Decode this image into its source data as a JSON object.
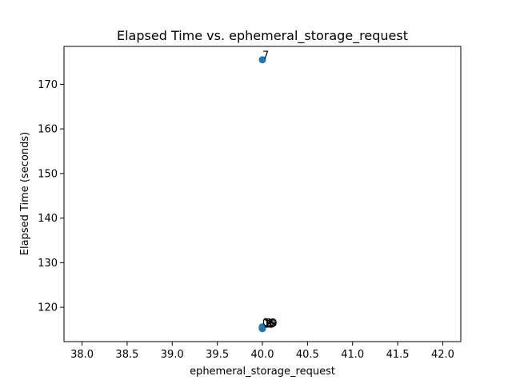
{
  "chart_data": {
    "type": "scatter",
    "title": "Elapsed Time vs. ephemeral_storage_request",
    "xlabel": "ephemeral_storage_request",
    "ylabel": "Elapsed Time (seconds)",
    "xlim": [
      37.8,
      42.2
    ],
    "ylim": [
      112.3,
      178.5
    ],
    "xticks": [
      "38.0",
      "38.5",
      "39.0",
      "39.5",
      "40.0",
      "40.5",
      "41.0",
      "41.5",
      "42.0"
    ],
    "yticks": [
      "120",
      "130",
      "140",
      "150",
      "160",
      "170"
    ],
    "grid": false,
    "marker_color": "#1f77b4",
    "points": [
      {
        "x": 40.0,
        "y": 175.5,
        "label": "7"
      },
      {
        "x": 40.0,
        "y": 115.6,
        "label": "0"
      },
      {
        "x": 40.0,
        "y": 115.4,
        "label": "1"
      },
      {
        "x": 40.0,
        "y": 115.3,
        "label": "2"
      },
      {
        "x": 40.0,
        "y": 115.5,
        "label": "3"
      },
      {
        "x": 40.0,
        "y": 115.2,
        "label": "4"
      },
      {
        "x": 40.0,
        "y": 115.4,
        "label": "5"
      },
      {
        "x": 40.0,
        "y": 115.3,
        "label": "6"
      },
      {
        "x": 40.0,
        "y": 115.5,
        "label": "8"
      },
      {
        "x": 40.0,
        "y": 115.4,
        "label": "9"
      }
    ]
  }
}
